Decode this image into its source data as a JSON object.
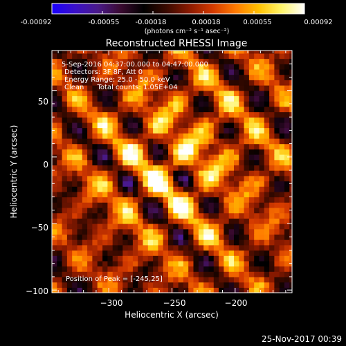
{
  "colorbar": {
    "ticks": [
      "-0.00092",
      "-0.00055",
      "-0.00018",
      "0.00018",
      "0.00055",
      "0.00092"
    ],
    "unit_label": "(photons cm⁻² s⁻¹ asec⁻²)",
    "stops": [
      "#1a00ff",
      "#3a10c8",
      "#4a1a8a",
      "#3a0a30",
      "#000000",
      "#3b0a00",
      "#8b1a00",
      "#d43a00",
      "#ff7a00",
      "#ffc000",
      "#fff56a",
      "#ffffff"
    ]
  },
  "chart_data": {
    "type": "heatmap",
    "title": "Reconstructed RHESSI Image",
    "xlabel": "Heliocentric X (arcsec)",
    "ylabel": "Heliocentric Y (arcsec)",
    "xlim": [
      -345,
      -155
    ],
    "ylim": [
      -102,
      80
    ],
    "x_ticks": [
      -300,
      -250,
      -200
    ],
    "y_ticks": [
      50,
      0,
      -50,
      -100
    ],
    "x_tick_labels": [
      "−300",
      "−250",
      "−200"
    ],
    "y_tick_labels": [
      "50",
      "0",
      "−50",
      "−100"
    ],
    "annotations": [
      "5-Sep-2016 04:37:00.000 to 04:47:00.000",
      "Detectors: 3F 8F, Att 0",
      "Energy Range: 25.0 - 50.0 keV",
      "Clean      Total counts: 1.05E+04"
    ],
    "peak_label": "Position of Peak = [-245,25]",
    "peak": [
      -245,
      25
    ],
    "colorbar_range": [
      -0.00092,
      0.00092
    ]
  },
  "timestamp": "25-Nov-2017 00:39"
}
